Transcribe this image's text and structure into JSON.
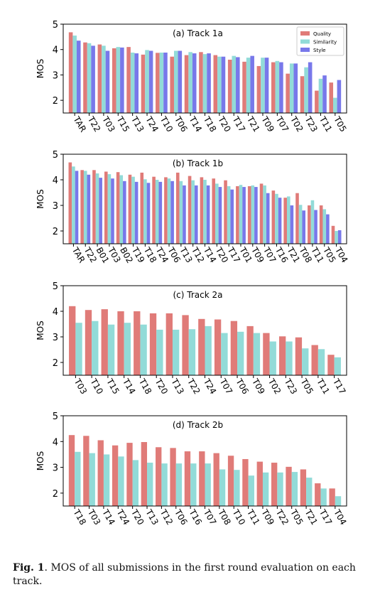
{
  "figure": {
    "caption_label": "Fig. 1",
    "caption_text": ". MOS of all submissions in the first round evaluation on each track."
  },
  "colors": {
    "Quality": "#e07b78",
    "Similarity": "#92dbd8",
    "Style": "#7878ea"
  },
  "chart_data": [
    {
      "type": "bar",
      "title": "(a) Track 1a",
      "ylabel": "MOS",
      "ylim": [
        1.5,
        5
      ],
      "yticks": [
        2,
        3,
        4,
        5
      ],
      "legend": "top-right",
      "categories": [
        "TAR",
        "T22",
        "T03",
        "T15",
        "T13",
        "T24",
        "T10",
        "T06",
        "T14",
        "T18",
        "T20",
        "T17",
        "T21",
        "T09",
        "T07",
        "T02",
        "T23",
        "T11",
        "T05"
      ],
      "series": [
        {
          "name": "Quality",
          "values": [
            4.68,
            4.28,
            4.2,
            4.05,
            4.1,
            3.8,
            3.87,
            3.72,
            3.78,
            3.9,
            3.78,
            3.6,
            3.52,
            3.35,
            3.5,
            3.05,
            2.95,
            2.38,
            2.7
          ]
        },
        {
          "name": "Similarity",
          "values": [
            4.55,
            4.25,
            4.15,
            4.1,
            3.88,
            3.98,
            3.88,
            3.95,
            3.9,
            3.82,
            3.72,
            3.75,
            3.68,
            3.68,
            3.55,
            3.45,
            3.3,
            2.85,
            2.1
          ]
        },
        {
          "name": "Style",
          "values": [
            4.35,
            4.15,
            3.95,
            4.08,
            3.85,
            3.95,
            3.88,
            3.95,
            3.85,
            3.85,
            3.72,
            3.7,
            3.75,
            3.68,
            3.5,
            3.45,
            3.5,
            2.98,
            2.8
          ]
        }
      ]
    },
    {
      "type": "bar",
      "title": "(b) Track 1b",
      "ylabel": "MOS",
      "ylim": [
        1.5,
        5
      ],
      "yticks": [
        2,
        3,
        4,
        5
      ],
      "categories": [
        "TAR",
        "T22",
        "B01",
        "T03",
        "B02",
        "T19",
        "T18",
        "T24",
        "T06",
        "T13",
        "T12",
        "T14",
        "T20",
        "T17",
        "T01",
        "T09",
        "T07",
        "T16",
        "T21",
        "T08",
        "T11",
        "T05",
        "T04"
      ],
      "series": [
        {
          "name": "Quality",
          "values": [
            4.68,
            4.38,
            4.38,
            4.32,
            4.3,
            4.2,
            4.28,
            4.12,
            4.1,
            4.28,
            4.15,
            4.1,
            4.05,
            3.98,
            3.75,
            3.75,
            3.85,
            3.58,
            3.3,
            3.48,
            3.0,
            3.0,
            2.2
          ]
        },
        {
          "name": "Similarity",
          "values": [
            4.52,
            4.35,
            4.25,
            4.22,
            4.18,
            4.12,
            4.02,
            4.0,
            4.05,
            3.95,
            3.98,
            4.0,
            3.85,
            3.75,
            3.8,
            3.78,
            3.78,
            3.45,
            3.35,
            3.02,
            3.2,
            2.85,
            2.0
          ]
        },
        {
          "name": "Style",
          "values": [
            4.35,
            4.2,
            4.08,
            4.05,
            3.95,
            3.92,
            3.88,
            3.92,
            3.95,
            3.78,
            3.78,
            3.78,
            3.72,
            3.62,
            3.72,
            3.72,
            3.48,
            3.3,
            3.0,
            2.8,
            2.82,
            2.65,
            2.03
          ]
        }
      ]
    },
    {
      "type": "bar",
      "title": "(c) Track 2a",
      "ylabel": "MOS",
      "ylim": [
        1.5,
        5
      ],
      "yticks": [
        2,
        3,
        4,
        5
      ],
      "categories": [
        "T03",
        "T10",
        "T15",
        "T14",
        "T18",
        "T20",
        "T13",
        "T22",
        "T24",
        "T07",
        "T06",
        "T09",
        "T02",
        "T23",
        "T05",
        "T11",
        "T17"
      ],
      "series": [
        {
          "name": "Quality",
          "values": [
            4.2,
            4.05,
            4.08,
            4.0,
            4.0,
            3.92,
            3.92,
            3.85,
            3.7,
            3.68,
            3.62,
            3.42,
            3.15,
            3.02,
            2.98,
            2.68,
            2.3
          ]
        },
        {
          "name": "Similarity",
          "values": [
            3.55,
            3.62,
            3.48,
            3.55,
            3.48,
            3.28,
            3.28,
            3.3,
            3.42,
            3.15,
            3.2,
            3.15,
            2.82,
            2.82,
            2.55,
            2.52,
            2.2
          ]
        }
      ]
    },
    {
      "type": "bar",
      "title": "(d) Track 2b",
      "ylabel": "MOS",
      "ylim": [
        1.5,
        5
      ],
      "yticks": [
        2,
        3,
        4,
        5
      ],
      "categories": [
        "T18",
        "T03",
        "T14",
        "T24",
        "T20",
        "T13",
        "T12",
        "T06",
        "T16",
        "T07",
        "T08",
        "T10",
        "T11",
        "T09",
        "T22",
        "T05",
        "T21",
        "T17",
        "T04"
      ],
      "series": [
        {
          "name": "Quality",
          "values": [
            4.25,
            4.22,
            4.05,
            3.85,
            3.95,
            3.98,
            3.78,
            3.75,
            3.62,
            3.62,
            3.55,
            3.45,
            3.32,
            3.22,
            3.18,
            3.02,
            2.92,
            2.38,
            2.18
          ]
        },
        {
          "name": "Similarity",
          "values": [
            3.6,
            3.55,
            3.5,
            3.42,
            3.28,
            3.18,
            3.15,
            3.15,
            3.15,
            3.15,
            2.92,
            2.9,
            2.68,
            2.8,
            2.8,
            2.82,
            2.6,
            2.18,
            1.88
          ]
        }
      ]
    }
  ]
}
